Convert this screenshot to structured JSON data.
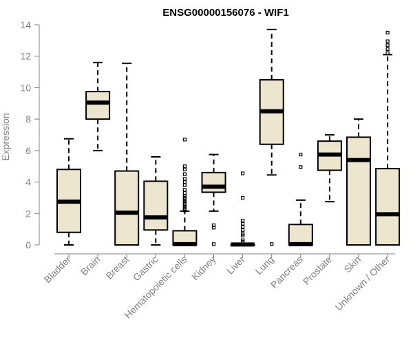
{
  "chart_data": {
    "type": "boxplot",
    "title": "ENSG00000156076 - WIF1",
    "xlabel": "",
    "ylabel": "Expression",
    "ylim": [
      0,
      14
    ],
    "yticks": [
      0,
      2,
      4,
      6,
      8,
      10,
      12,
      14
    ],
    "grid": false,
    "colors": {
      "box_fill": "#ede6cf",
      "axis": "#808080",
      "text": "#808080"
    },
    "categories": [
      "Bladder",
      "Brain",
      "Breast",
      "Gastric",
      "Hematopoietic cells",
      "Kidney",
      "Liver",
      "Lung",
      "Pancreas",
      "Prostate",
      "Skin",
      "Unknown / Other"
    ],
    "boxes": [
      {
        "label": "Bladder",
        "min": 0,
        "q1": 0.8,
        "median": 2.75,
        "q3": 4.8,
        "max": 6.75,
        "outliers": []
      },
      {
        "label": "Brain",
        "min": 6.0,
        "q1": 8.0,
        "median": 9.05,
        "q3": 9.75,
        "max": 11.6,
        "outliers": []
      },
      {
        "label": "Breast",
        "min": 0,
        "q1": 0,
        "median": 2.05,
        "q3": 4.7,
        "max": 11.55,
        "outliers": []
      },
      {
        "label": "Gastric",
        "min": 0,
        "q1": 0.95,
        "median": 1.75,
        "q3": 4.05,
        "max": 5.6,
        "outliers": []
      },
      {
        "label": "Hematopoietic cells",
        "min": 0,
        "q1": 0,
        "median": 0.05,
        "q3": 0.9,
        "max": 2.15,
        "outliers": [
          6.7,
          5.0,
          4.8,
          4.5,
          4.2,
          4.0,
          3.8,
          3.5,
          3.3,
          3.1,
          3.0,
          2.9,
          2.8,
          2.7,
          2.6,
          2.5,
          2.4,
          2.3,
          2.2
        ]
      },
      {
        "label": "Kidney",
        "min": 2.15,
        "q1": 3.35,
        "median": 3.7,
        "q3": 4.6,
        "max": 5.75,
        "outliers": [
          1.25,
          1.1,
          0.05
        ]
      },
      {
        "label": "Liver",
        "min": 0,
        "q1": 0,
        "median": 0.03,
        "q3": 0.05,
        "max": 0.1,
        "outliers": [
          4.55,
          3.0,
          1.55,
          1.35,
          1.15,
          0.95,
          0.7,
          0.6,
          0.3,
          0.2
        ]
      },
      {
        "label": "Lung",
        "min": 4.45,
        "q1": 6.4,
        "median": 8.5,
        "q3": 10.5,
        "max": 13.7,
        "outliers": [
          0.05
        ]
      },
      {
        "label": "Pancreas",
        "min": 0,
        "q1": 0,
        "median": 0.05,
        "q3": 1.3,
        "max": 2.85,
        "outliers": [
          5.75,
          4.95
        ]
      },
      {
        "label": "Prostate",
        "min": 2.75,
        "q1": 4.75,
        "median": 5.75,
        "q3": 6.6,
        "max": 7.0,
        "outliers": []
      },
      {
        "label": "Skin",
        "min": 0,
        "q1": 0,
        "median": 5.4,
        "q3": 6.85,
        "max": 8.0,
        "outliers": []
      },
      {
        "label": "Unknown / Other",
        "min": 0,
        "q1": 0,
        "median": 1.95,
        "q3": 4.85,
        "max": 12.1,
        "outliers": [
          13.5,
          12.95,
          12.7,
          12.45,
          12.2
        ]
      }
    ]
  }
}
